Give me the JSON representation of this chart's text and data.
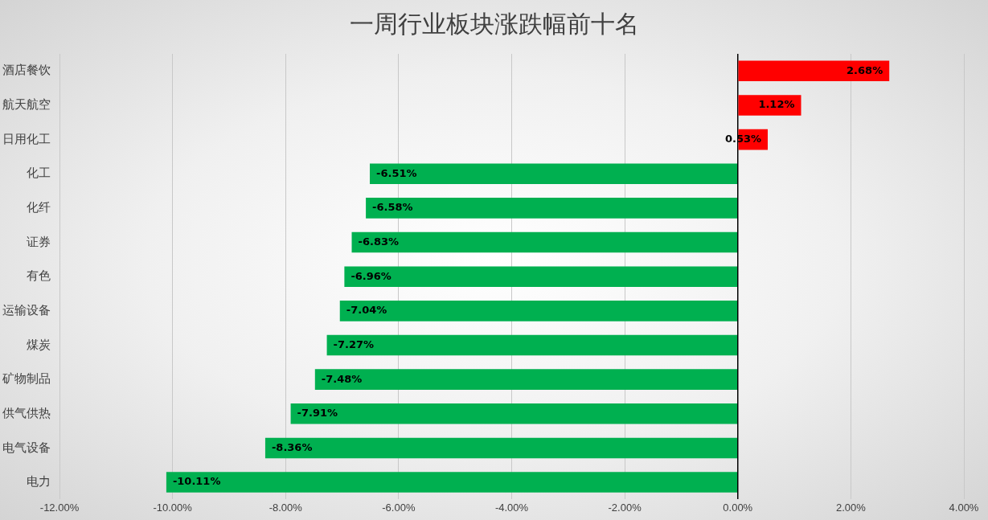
{
  "chart_data": {
    "type": "bar",
    "orientation": "horizontal",
    "title": "一周行业板块涨跌幅前十名",
    "categories": [
      "酒店餐饮",
      "航天航空",
      "日用化工",
      "化工",
      "化纤",
      "证券",
      "有色",
      "运输设备",
      "煤炭",
      "矿物制品",
      "供气供热",
      "电气设备",
      "电力"
    ],
    "values": [
      2.68,
      1.12,
      0.53,
      -6.51,
      -6.58,
      -6.83,
      -6.96,
      -7.04,
      -7.27,
      -7.48,
      -7.91,
      -8.36,
      -10.11
    ],
    "colors": [
      "#ff0000",
      "#ff0000",
      "#ff0000",
      "#00b050",
      "#00b050",
      "#00b050",
      "#00b050",
      "#00b050",
      "#00b050",
      "#00b050",
      "#00b050",
      "#00b050",
      "#00b050"
    ],
    "value_labels": [
      "2.68%",
      "1.12%",
      "0.53%",
      "-6.51%",
      "-6.58%",
      "-6.83%",
      "-6.96%",
      "-7.04%",
      "-7.27%",
      "-7.48%",
      "-7.91%",
      "-8.36%",
      "-10.11%"
    ],
    "xlim": [
      -12,
      4
    ],
    "xticks": [
      {
        "value": -12,
        "label": "-12.00%"
      },
      {
        "value": -10,
        "label": "-10.00%"
      },
      {
        "value": -8,
        "label": "-8.00%"
      },
      {
        "value": -6,
        "label": "-6.00%"
      },
      {
        "value": -4,
        "label": "-4.00%"
      },
      {
        "value": -2,
        "label": "-2.00%"
      },
      {
        "value": 0,
        "label": "0.00%"
      },
      {
        "value": 2,
        "label": "2.00%"
      },
      {
        "value": 4,
        "label": "4.00%"
      }
    ],
    "grid": "x",
    "legend": false
  }
}
